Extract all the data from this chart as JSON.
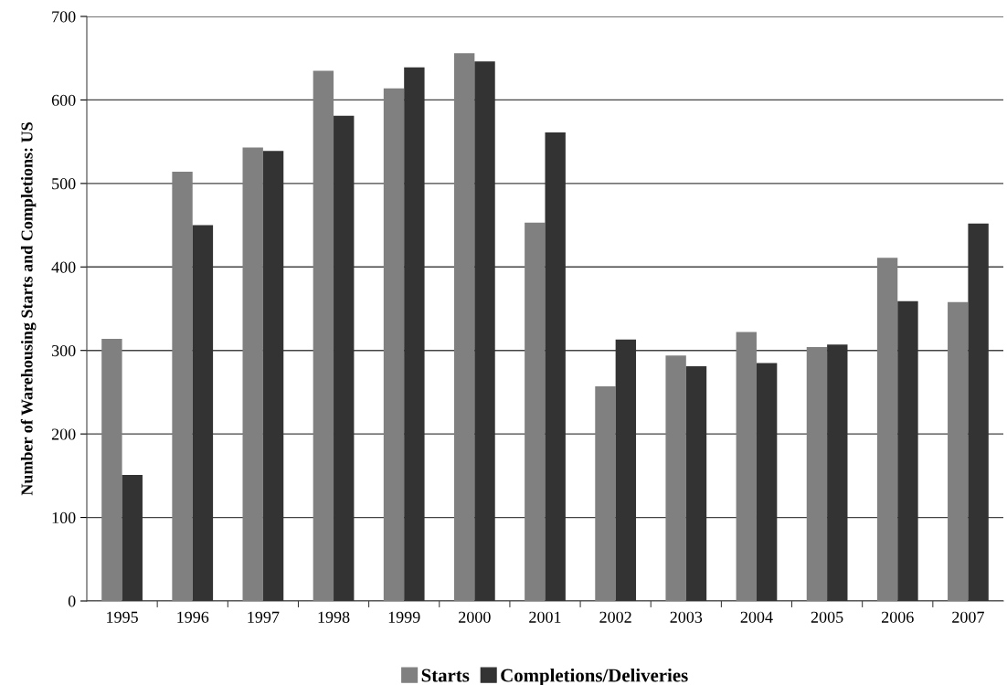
{
  "chart_data": {
    "type": "bar",
    "ylabel": "Number of Warehousing Starts and Completions: US",
    "categories": [
      "1995",
      "1996",
      "1997",
      "1998",
      "1999",
      "2000",
      "2001",
      "2002",
      "2003",
      "2004",
      "2005",
      "2006",
      "2007"
    ],
    "series": [
      {
        "name": "Starts",
        "color": "#808080",
        "values": [
          314,
          514,
          543,
          635,
          614,
          656,
          453,
          257,
          294,
          322,
          304,
          411,
          358
        ]
      },
      {
        "name": "Completions/Deliveries",
        "color": "#333333",
        "values": [
          151,
          450,
          539,
          581,
          639,
          646,
          561,
          313,
          281,
          285,
          307,
          359,
          452
        ]
      }
    ],
    "ylim": [
      0,
      700
    ],
    "yticks": [
      0,
      100,
      200,
      300,
      400,
      500,
      600,
      700
    ],
    "grid": "y",
    "legend": "bottom"
  }
}
